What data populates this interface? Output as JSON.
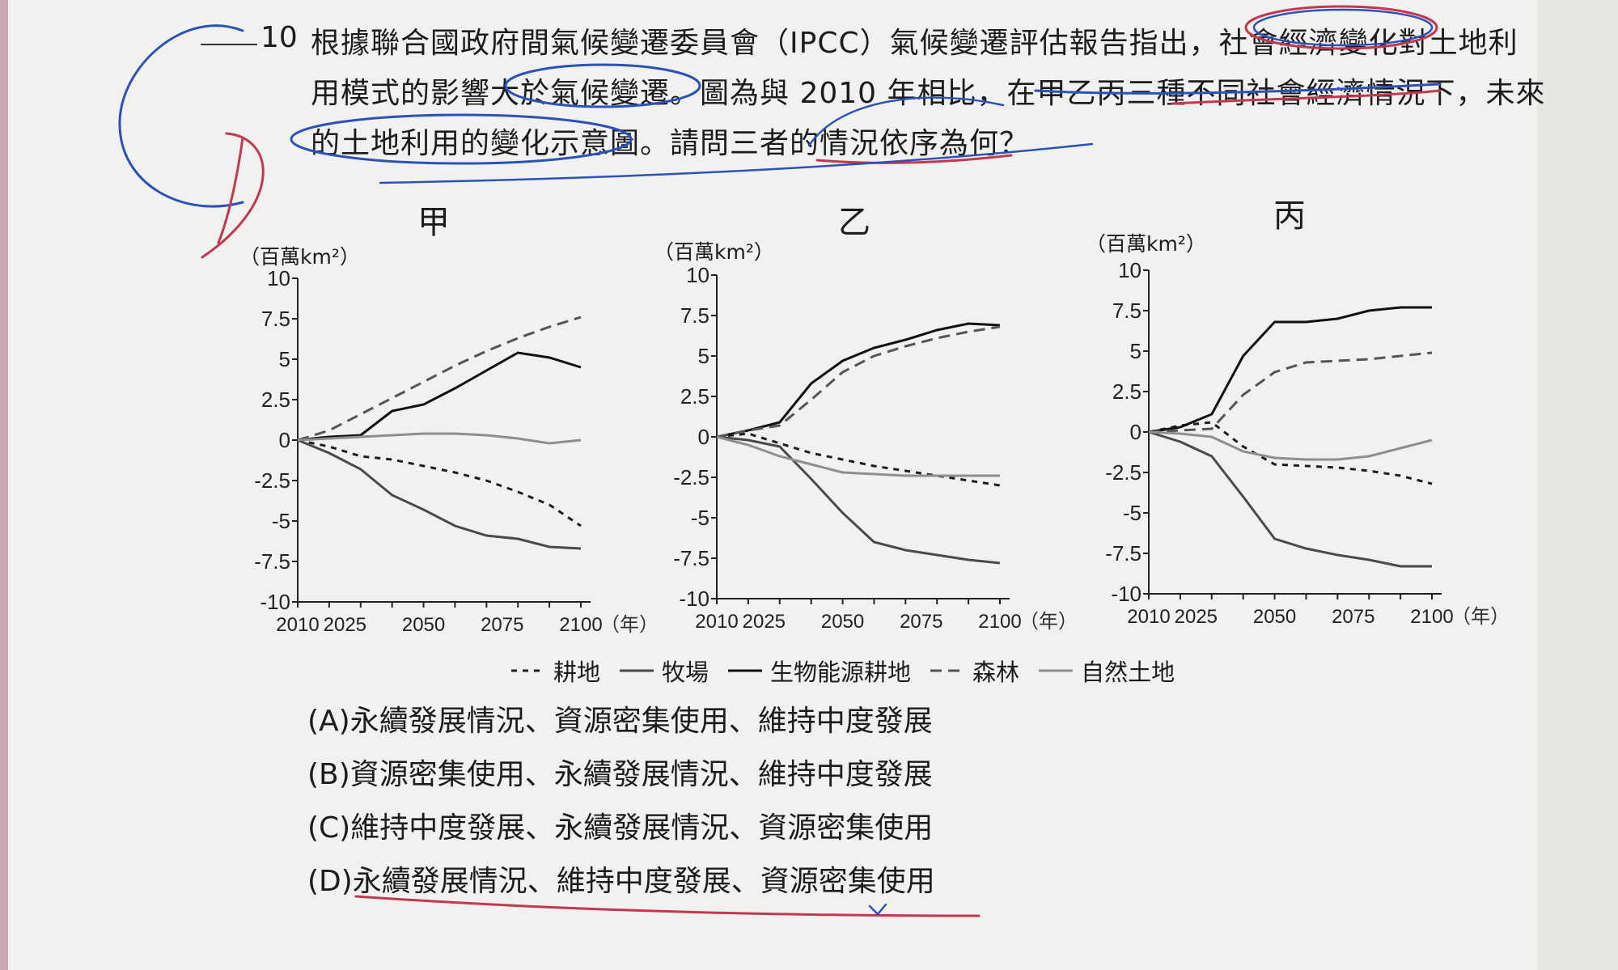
{
  "question": {
    "number": "10",
    "line1": "根據聯合國政府間氣候變遷委員會（IPCC）氣候變遷評估報告指出，社會經濟變化對土地利",
    "line2": "用模式的影響大於氣候變遷。圖為與 2010 年相比，在甲乙丙三種不同社會經濟情況下，未來",
    "line3": "的土地利用的變化示意圖。請問三者的情況依序為何？"
  },
  "legend": [
    {
      "key": "cropland",
      "label": "耕地"
    },
    {
      "key": "pasture",
      "label": "牧場"
    },
    {
      "key": "bioenergy",
      "label": "生物能源耕地"
    },
    {
      "key": "forest",
      "label": "森林"
    },
    {
      "key": "natural",
      "label": "自然土地"
    }
  ],
  "series_styles": {
    "cropland": {
      "color": "#1e1e1e",
      "dash": "7,7"
    },
    "pasture": {
      "color": "#4a4a4a",
      "dash": ""
    },
    "bioenergy": {
      "color": "#111111",
      "dash": ""
    },
    "forest": {
      "color": "#555555",
      "dash": "14,8"
    },
    "natural": {
      "color": "#8e8e8e",
      "dash": ""
    }
  },
  "chart_data": [
    {
      "type": "line",
      "title": "甲",
      "ylabel": "（百萬km²）",
      "xunit": "（年）",
      "x": [
        2010,
        2020,
        2030,
        2040,
        2050,
        2060,
        2070,
        2080,
        2090,
        2100
      ],
      "xticks": [
        "2010",
        "2025",
        "2050",
        "2075",
        "2100"
      ],
      "yticks": [
        "10",
        "7.5",
        "5",
        "2.5",
        "0",
        "-2.5",
        "-5",
        "-7.5",
        "-10"
      ],
      "ylim": [
        -10,
        10
      ],
      "series": [
        {
          "name": "耕地",
          "key": "cropland",
          "values": [
            0,
            -0.4,
            -1.0,
            -1.2,
            -1.6,
            -2.0,
            -2.5,
            -3.2,
            -4.0,
            -5.3
          ]
        },
        {
          "name": "牧場",
          "key": "pasture",
          "values": [
            0,
            -0.8,
            -1.8,
            -3.4,
            -4.3,
            -5.3,
            -5.9,
            -6.1,
            -6.6,
            -6.7
          ]
        },
        {
          "name": "生物能源耕地",
          "key": "bioenergy",
          "values": [
            0,
            0.2,
            0.3,
            1.8,
            2.2,
            3.2,
            4.3,
            5.4,
            5.1,
            4.5
          ]
        },
        {
          "name": "森林",
          "key": "forest",
          "values": [
            0,
            0.6,
            1.6,
            2.6,
            3.6,
            4.6,
            5.5,
            6.3,
            7.0,
            7.6
          ]
        },
        {
          "name": "自然土地",
          "key": "natural",
          "values": [
            0,
            0.1,
            0.2,
            0.3,
            0.4,
            0.4,
            0.3,
            0.1,
            -0.2,
            0.0
          ]
        }
      ]
    },
    {
      "type": "line",
      "title": "乙",
      "ylabel": "（百萬km²）",
      "xunit": "（年）",
      "x": [
        2010,
        2020,
        2030,
        2040,
        2050,
        2060,
        2070,
        2080,
        2090,
        2100
      ],
      "xticks": [
        "2010",
        "2025",
        "2050",
        "2075",
        "2100"
      ],
      "yticks": [
        "10",
        "7.5",
        "5",
        "2.5",
        "0",
        "-2.5",
        "-5",
        "-7.5",
        "-10"
      ],
      "ylim": [
        -10,
        10
      ],
      "series": [
        {
          "name": "耕地",
          "key": "cropland",
          "values": [
            0,
            0.2,
            -0.4,
            -1.0,
            -1.4,
            -1.8,
            -2.1,
            -2.4,
            -2.7,
            -3.0
          ]
        },
        {
          "name": "牧場",
          "key": "pasture",
          "values": [
            0,
            -0.2,
            -0.6,
            -2.6,
            -4.7,
            -6.5,
            -7.0,
            -7.3,
            -7.6,
            -7.8
          ]
        },
        {
          "name": "生物能源耕地",
          "key": "bioenergy",
          "values": [
            0,
            0.4,
            0.9,
            3.3,
            4.7,
            5.5,
            6.0,
            6.6,
            7.0,
            6.9
          ]
        },
        {
          "name": "森林",
          "key": "forest",
          "values": [
            0,
            0.4,
            0.7,
            2.3,
            4.0,
            5.0,
            5.6,
            6.1,
            6.5,
            6.8
          ]
        },
        {
          "name": "自然土地",
          "key": "natural",
          "values": [
            0,
            -0.5,
            -1.2,
            -1.7,
            -2.2,
            -2.3,
            -2.4,
            -2.4,
            -2.4,
            -2.4
          ]
        }
      ]
    },
    {
      "type": "line",
      "title": "丙",
      "ylabel": "（百萬km²）",
      "xunit": "（年）",
      "x": [
        2010,
        2020,
        2030,
        2040,
        2050,
        2060,
        2070,
        2080,
        2090,
        2100
      ],
      "xticks": [
        "2010",
        "2025",
        "2050",
        "2075",
        "2100"
      ],
      "yticks": [
        "10",
        "7.5",
        "5",
        "2.5",
        "0",
        "-2.5",
        "-5",
        "-7.5",
        "-10"
      ],
      "ylim": [
        -10,
        10
      ],
      "series": [
        {
          "name": "耕地",
          "key": "cropland",
          "values": [
            0,
            0.4,
            0.6,
            -0.9,
            -2.0,
            -2.1,
            -2.2,
            -2.4,
            -2.7,
            -3.2
          ]
        },
        {
          "name": "牧場",
          "key": "pasture",
          "values": [
            0,
            -0.6,
            -1.5,
            -4.0,
            -6.6,
            -7.2,
            -7.6,
            -7.9,
            -8.3,
            -8.3
          ]
        },
        {
          "name": "生物能源耕地",
          "key": "bioenergy",
          "values": [
            0,
            0.3,
            1.1,
            4.7,
            6.8,
            6.8,
            7.0,
            7.5,
            7.7,
            7.7
          ]
        },
        {
          "name": "森林",
          "key": "forest",
          "values": [
            0,
            0.1,
            0.2,
            2.3,
            3.7,
            4.3,
            4.4,
            4.5,
            4.7,
            4.9
          ]
        },
        {
          "name": "自然土地",
          "key": "natural",
          "values": [
            0,
            -0.1,
            -0.3,
            -1.2,
            -1.6,
            -1.7,
            -1.7,
            -1.5,
            -1.0,
            -0.5
          ]
        }
      ]
    }
  ],
  "options": [
    "(A)永續發展情況、資源密集使用、維持中度發展",
    "(B)資源密集使用、永續發展情況、維持中度發展",
    "(C)維持中度發展、永續發展情況、資源密集使用",
    "(D)永續發展情況、維持中度發展、資源密集使用"
  ]
}
